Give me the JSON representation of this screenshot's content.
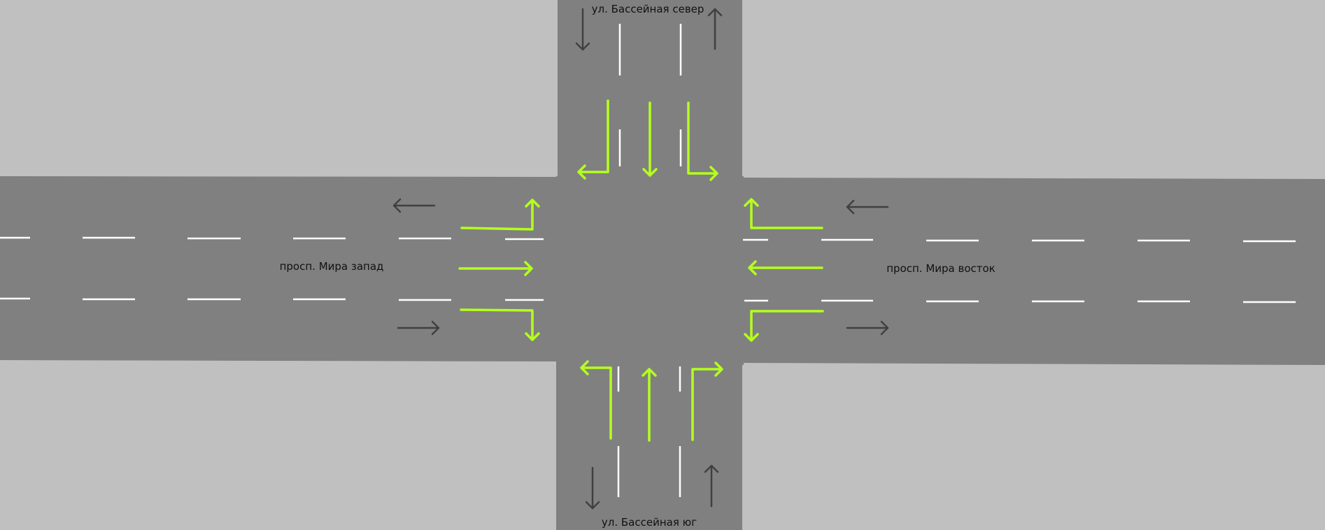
{
  "colors": {
    "ground": "#c0c0c0",
    "road": "#808080",
    "lane_marking": "#ffffff",
    "direction_arrow": "#404040",
    "turn_arrow": "#b4ff1e"
  },
  "streets": {
    "north": "ул. Бассейная север",
    "south": "ул. Бассейная юг",
    "west": "просп. Мира запад",
    "east": "просп. Мира восток"
  },
  "approaches": [
    {
      "side": "north",
      "turns": [
        "right",
        "straight",
        "left"
      ]
    },
    {
      "side": "south",
      "turns": [
        "left",
        "straight",
        "right"
      ]
    },
    {
      "side": "west",
      "turns": [
        "left",
        "straight",
        "right"
      ]
    },
    {
      "side": "east",
      "turns": [
        "right",
        "straight",
        "left"
      ]
    }
  ],
  "traffic_directions": [
    "southbound",
    "northbound",
    "westbound",
    "eastbound"
  ],
  "icons": {
    "direction_arrow": "arrow-icon",
    "turn_arrow": "turn-arrow-icon"
  }
}
